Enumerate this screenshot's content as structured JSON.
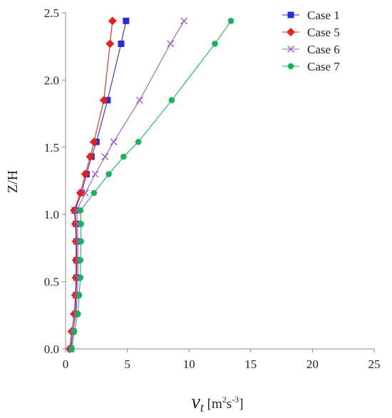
{
  "chart_data": {
    "type": "line",
    "title": "",
    "ylabel": "Z/H",
    "xlabel_symbol": "ν",
    "xlabel_subscript": "t",
    "xlabel_unit_open": " [m",
    "xlabel_unit_exp1": "2",
    "xlabel_unit_mid": "s",
    "xlabel_unit_exp2": "-3",
    "xlabel_unit_close": "]",
    "xlim": [
      0,
      25
    ],
    "ylim": [
      0,
      2.5
    ],
    "x_ticks": [
      "0",
      "5",
      "10",
      "15",
      "20",
      "25"
    ],
    "y_ticks": [
      "0.0",
      "0.5",
      "1.0",
      "1.5",
      "2.0",
      "2.5"
    ],
    "grid": false,
    "legend_position": "top-right",
    "series": [
      {
        "name": "Case 1",
        "color": "#2b2bd0",
        "marker": "square",
        "points": [
          [
            0.4,
            0.0
          ],
          [
            0.6,
            0.13
          ],
          [
            0.8,
            0.26
          ],
          [
            0.85,
            0.4
          ],
          [
            0.9,
            0.53
          ],
          [
            0.9,
            0.66
          ],
          [
            0.9,
            0.8
          ],
          [
            0.85,
            0.93
          ],
          [
            0.75,
            1.03
          ],
          [
            1.3,
            1.16
          ],
          [
            1.7,
            1.3
          ],
          [
            2.1,
            1.43
          ],
          [
            2.5,
            1.54
          ],
          [
            3.4,
            1.85
          ],
          [
            4.5,
            2.27
          ],
          [
            4.9,
            2.44
          ]
        ]
      },
      {
        "name": "Case 5",
        "color": "#e8201c",
        "marker": "diamond",
        "points": [
          [
            0.35,
            0.0
          ],
          [
            0.5,
            0.13
          ],
          [
            0.7,
            0.26
          ],
          [
            0.8,
            0.4
          ],
          [
            0.85,
            0.53
          ],
          [
            0.85,
            0.66
          ],
          [
            0.85,
            0.8
          ],
          [
            0.8,
            0.93
          ],
          [
            0.7,
            1.03
          ],
          [
            1.2,
            1.16
          ],
          [
            1.6,
            1.3
          ],
          [
            2.0,
            1.43
          ],
          [
            2.3,
            1.54
          ],
          [
            3.1,
            1.85
          ],
          [
            3.6,
            2.27
          ],
          [
            3.8,
            2.44
          ]
        ]
      },
      {
        "name": "Case 6",
        "color": "#9b5cc4",
        "marker": "x",
        "points": [
          [
            0.45,
            0.0
          ],
          [
            0.6,
            0.13
          ],
          [
            0.85,
            0.26
          ],
          [
            0.95,
            0.4
          ],
          [
            1.0,
            0.53
          ],
          [
            1.0,
            0.66
          ],
          [
            1.0,
            0.8
          ],
          [
            0.95,
            0.93
          ],
          [
            0.9,
            1.03
          ],
          [
            1.6,
            1.16
          ],
          [
            2.4,
            1.3
          ],
          [
            3.2,
            1.43
          ],
          [
            3.9,
            1.54
          ],
          [
            6.0,
            1.85
          ],
          [
            8.5,
            2.27
          ],
          [
            9.6,
            2.44
          ]
        ]
      },
      {
        "name": "Case 7",
        "color": "#18b25f",
        "marker": "circle",
        "points": [
          [
            0.5,
            0.0
          ],
          [
            0.7,
            0.13
          ],
          [
            1.0,
            0.26
          ],
          [
            1.1,
            0.4
          ],
          [
            1.2,
            0.53
          ],
          [
            1.2,
            0.66
          ],
          [
            1.25,
            0.8
          ],
          [
            1.25,
            0.93
          ],
          [
            1.2,
            1.03
          ],
          [
            2.3,
            1.16
          ],
          [
            3.5,
            1.3
          ],
          [
            4.7,
            1.43
          ],
          [
            5.9,
            1.54
          ],
          [
            8.6,
            1.85
          ],
          [
            12.1,
            2.27
          ],
          [
            13.4,
            2.44
          ]
        ]
      }
    ]
  }
}
